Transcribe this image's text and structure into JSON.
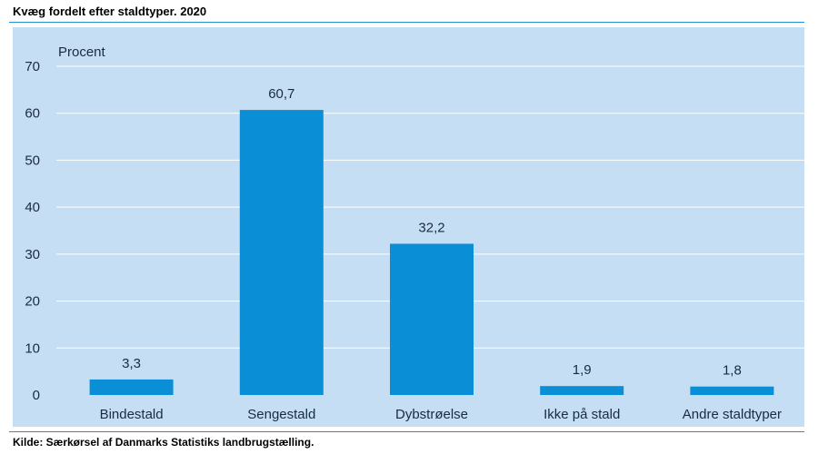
{
  "header": {
    "title": "Kvæg fordelt efter staldtyper. 2020"
  },
  "footer": {
    "source": "Kilde: Særkørsel af Danmarks Statistiks landbrugstælling."
  },
  "colors": {
    "bar": "#0a8fd6",
    "background": "#c5def3",
    "grid": "#ffffff",
    "rule": "#2a8dd4",
    "text": "#1a2a44"
  },
  "chart_data": {
    "type": "bar",
    "title": "Kvæg fordelt efter staldtyper. 2020",
    "ylabel": "Procent",
    "xlabel": "",
    "categories": [
      "Bindestald",
      "Sengestald",
      "Dybstrøelse",
      "Ikke på stald",
      "Andre staldtyper"
    ],
    "values": [
      3.3,
      60.7,
      32.2,
      1.9,
      1.8
    ],
    "value_labels": [
      "3,3",
      "60,7",
      "32,2",
      "1,9",
      "1,8"
    ],
    "ylim": [
      0,
      70
    ],
    "yticks": [
      0,
      10,
      20,
      30,
      40,
      50,
      60,
      70
    ],
    "grid": true,
    "legend": "none"
  }
}
